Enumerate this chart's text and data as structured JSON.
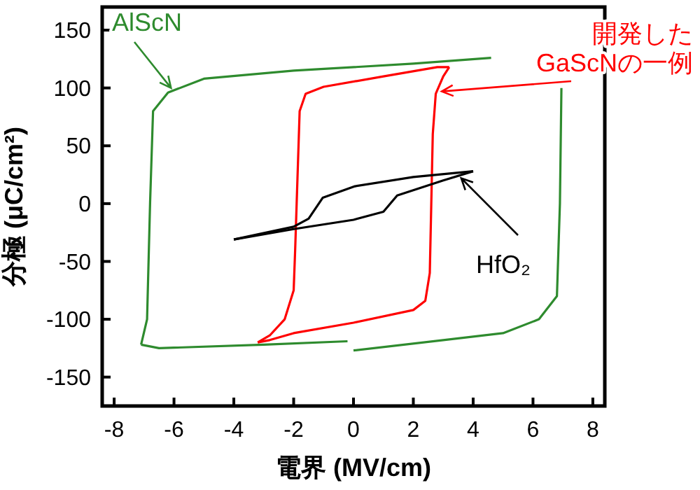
{
  "chart_data": {
    "type": "line",
    "xlabel": "電界 (MV/cm)",
    "ylabel": "分極 (μC/cm²)",
    "xlim": [
      -8.4,
      8.4
    ],
    "ylim": [
      -175,
      170
    ],
    "xticks": [
      -8,
      -6,
      -4,
      -2,
      0,
      2,
      4,
      6,
      8
    ],
    "yticks": [
      -150,
      -100,
      -50,
      0,
      50,
      100,
      150
    ],
    "grid": false,
    "series": [
      {
        "name": "AlScN",
        "color": "#2e8b2e",
        "x": [
          -7.1,
          -6.9,
          -6.8,
          -6.7,
          -6.2,
          -5,
          -2,
          2,
          4.6
        ],
        "values": [
          -122,
          -100,
          0,
          80,
          96,
          108,
          115,
          121,
          126
        ]
      },
      {
        "color": "#2e8b2e",
        "x": [
          -7.1,
          -6.5,
          -3,
          -0.2
        ],
        "values": [
          -122,
          -125,
          -122,
          -119
        ]
      },
      {
        "color": "#2e8b2e",
        "x": [
          0,
          3,
          5,
          6.2,
          6.8,
          6.9,
          6.95
        ],
        "values": [
          -127,
          -118,
          -112,
          -100,
          -80,
          0,
          100
        ]
      },
      {
        "name": "開発した\nGaScNの一例",
        "color": "#ff0000",
        "x": [
          -3.2,
          -2.8,
          -2.3,
          -2.0,
          -1.95,
          -1.9,
          -1.85,
          -1.8,
          -1.6,
          -1,
          1,
          2.8,
          3.2
        ],
        "values": [
          -120,
          -114,
          -100,
          -75,
          -40,
          0,
          40,
          80,
          95,
          101,
          110,
          118,
          118
        ]
      },
      {
        "color": "#ff0000",
        "x": [
          -3.2,
          -2.8,
          -2,
          0,
          2,
          2.4,
          2.55,
          2.6,
          2.65,
          2.75,
          3.0,
          3.2
        ],
        "values": [
          -120,
          -118,
          -112,
          -103,
          -92,
          -84,
          -60,
          0,
          60,
          95,
          110,
          118
        ]
      },
      {
        "name": "HfO₂",
        "color": "#000000",
        "x": [
          -4,
          -2,
          -1.5,
          -1.03,
          0.05,
          2,
          4
        ],
        "values": [
          -31,
          -20,
          -13,
          5,
          15,
          23,
          28
        ]
      },
      {
        "color": "#000000",
        "x": [
          -4,
          -2,
          0,
          1,
          1.46,
          3,
          4
        ],
        "values": [
          -31,
          -22,
          -14,
          -7,
          7,
          20,
          28
        ]
      }
    ]
  }
}
